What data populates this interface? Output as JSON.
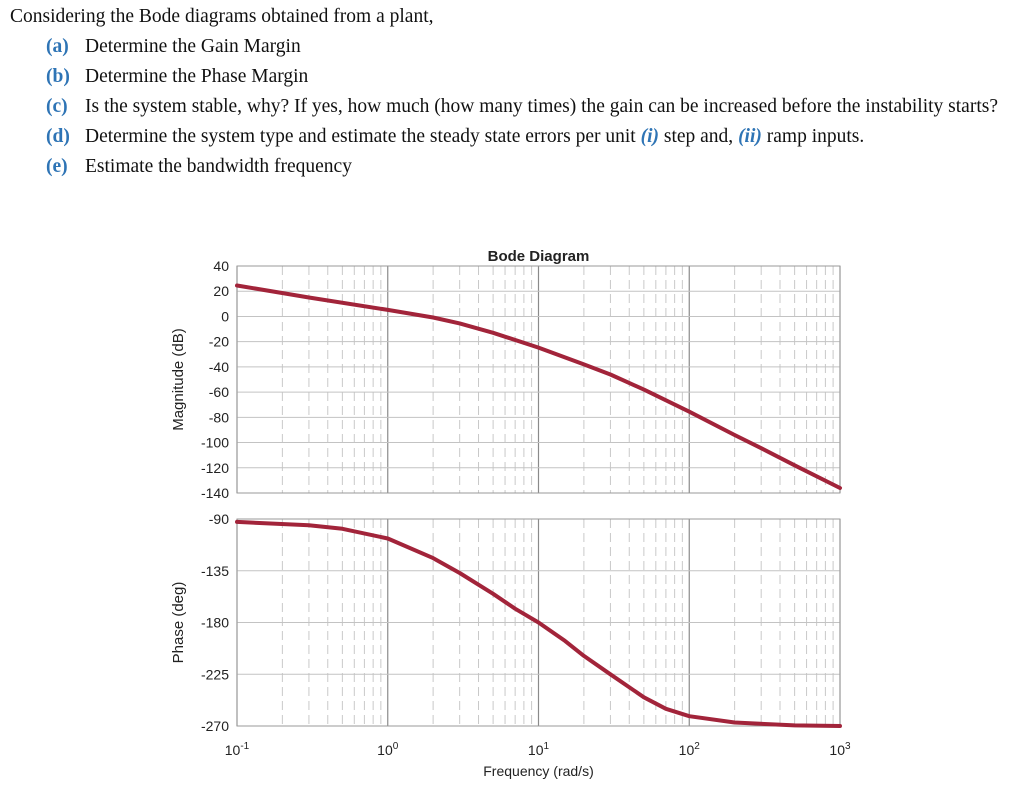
{
  "question": {
    "intro": "Considering the Bode diagrams obtained from a plant,",
    "parts": [
      {
        "label": "(a)",
        "pre": "Determine the Gain Margin",
        "tokens": []
      },
      {
        "label": "(b)",
        "pre": "Determine the Phase Margin",
        "tokens": []
      },
      {
        "label": "(c)",
        "pre": "Is the system stable, why? If yes, how much (how many times) the gain can be increased before the instability starts?",
        "tokens": []
      },
      {
        "label": "(d)",
        "pre": "Determine the system type and estimate the steady state errors per unit ",
        "tokens": [
          {
            "hl": "(i)",
            "text": " step and, "
          },
          {
            "hl": "(ii)",
            "text": " ramp inputs."
          }
        ]
      },
      {
        "label": "(e)",
        "pre": "Estimate the bandwidth frequency",
        "tokens": []
      }
    ]
  },
  "chart_data": {
    "type": "line",
    "title": "Bode Diagram",
    "xlabel": "Frequency  (rad/s)",
    "x_scale": "log",
    "xlim": [
      0.1,
      1000
    ],
    "x_ticks": [
      {
        "base": "10",
        "exp": "-1"
      },
      {
        "base": "10",
        "exp": "0"
      },
      {
        "base": "10",
        "exp": "1"
      },
      {
        "base": "10",
        "exp": "2"
      },
      {
        "base": "10",
        "exp": "3"
      }
    ],
    "grid": true,
    "line_color": "#a2243a",
    "panels": [
      {
        "name": "magnitude",
        "ylabel": "Magnitude (dB)",
        "ylim": [
          -140,
          40
        ],
        "yticks": [
          "40",
          "20",
          "0",
          "-20",
          "-40",
          "-60",
          "-80",
          "-100",
          "-120",
          "-140"
        ],
        "series": [
          {
            "x": [
              0.1,
              0.3,
              1,
              2,
              3,
              5,
              10,
              20,
              30,
              50,
              100,
              200,
              300,
              500,
              1000
            ],
            "y": [
              24.5,
              15,
              5.2,
              -0.8,
              -5.5,
              -13,
              -24.7,
              -38,
              -46,
              -58,
              -75.5,
              -94,
              -104.5,
              -118,
              -136
            ]
          }
        ]
      },
      {
        "name": "phase",
        "ylabel": "Phase (deg)",
        "ylim": [
          -270,
          -90
        ],
        "yticks": [
          "-90",
          "-135",
          "-180",
          "-225",
          "-270"
        ],
        "series": [
          {
            "x": [
              0.1,
              0.3,
              0.5,
              1,
              2,
              3,
              5,
              7,
              10,
              15,
              20,
              30,
              50,
              70,
              100,
              200,
              500,
              1000
            ],
            "y": [
              -92.5,
              -95.5,
              -98.5,
              -107,
              -124,
              -137,
              -155,
              -168,
              -180,
              -196,
              -209,
              -225,
              -245,
              -255,
              -261.5,
              -267,
              -269.5,
              -270
            ]
          }
        ]
      }
    ]
  }
}
